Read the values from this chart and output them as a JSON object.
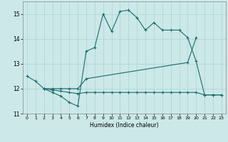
{
  "title": "",
  "xlabel": "Humidex (Indice chaleur)",
  "bg_color": "#cce8e8",
  "line_color": "#1a6b6b",
  "ylim": [
    11,
    15.5
  ],
  "xlim": [
    -0.5,
    23.5
  ],
  "yticks": [
    11,
    12,
    13,
    14,
    15
  ],
  "xticks": [
    0,
    1,
    2,
    3,
    4,
    5,
    6,
    7,
    8,
    9,
    10,
    11,
    12,
    13,
    14,
    15,
    16,
    17,
    18,
    19,
    20,
    21,
    22,
    23
  ],
  "series1_x": [
    0,
    1,
    2,
    3,
    4,
    5,
    6,
    7,
    8,
    9,
    10,
    11,
    12,
    13,
    14,
    15,
    16,
    17,
    18,
    19,
    20,
    21,
    22,
    23
  ],
  "series1_y": [
    12.5,
    12.3,
    12.0,
    11.85,
    11.7,
    11.45,
    11.3,
    13.5,
    13.65,
    15.0,
    14.3,
    15.1,
    15.15,
    14.85,
    14.35,
    14.65,
    14.35,
    14.35,
    14.35,
    14.05,
    13.1,
    11.75,
    11.75,
    11.75
  ],
  "series2_x": [
    2,
    3,
    4,
    5,
    6,
    7,
    19,
    20
  ],
  "series2_y": [
    12.0,
    12.0,
    12.0,
    12.0,
    12.0,
    12.4,
    13.05,
    14.05
  ],
  "series3_x": [
    2,
    3,
    4,
    5,
    6,
    7,
    8,
    9,
    10,
    11,
    12,
    13,
    14,
    15,
    16,
    17,
    18,
    19,
    20,
    21,
    22,
    23
  ],
  "series3_y": [
    12.0,
    11.95,
    11.9,
    11.85,
    11.8,
    11.85,
    11.85,
    11.85,
    11.85,
    11.85,
    11.85,
    11.85,
    11.85,
    11.85,
    11.85,
    11.85,
    11.85,
    11.85,
    11.85,
    11.75,
    11.75,
    11.75
  ],
  "grid_color": "#aad4d4",
  "marker": "+"
}
